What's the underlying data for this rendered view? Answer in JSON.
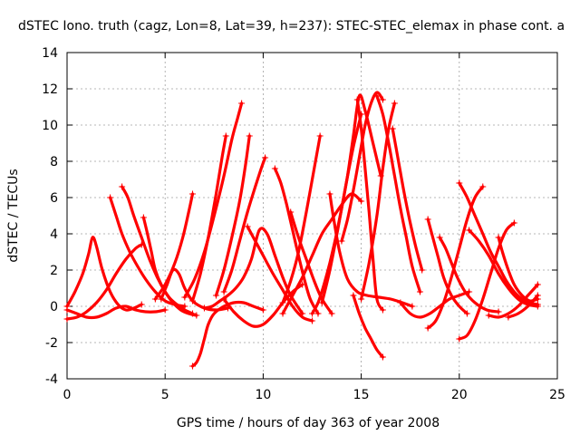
{
  "chart_data": {
    "type": "scatter",
    "title": "dSTEC Iono. truth (cagz, Lon=8, Lat=39, h=237): STEC-STEC_elemax in phase cont. a",
    "xlabel": "GPS time / hours of day 363 of year 2008",
    "ylabel": "dSTEC  / TECUs",
    "xlim": [
      0,
      25
    ],
    "ylim": [
      -4,
      14
    ],
    "xticks": [
      0,
      5,
      10,
      15,
      20,
      25
    ],
    "yticks": [
      -4,
      -2,
      0,
      2,
      4,
      6,
      8,
      10,
      12,
      14
    ],
    "grid": true,
    "marker": "plus",
    "color": "#ff0000",
    "series": [
      {
        "x": [
          0.0,
          0.4,
          0.8,
          1.1,
          1.3,
          1.5,
          1.8,
          2.2,
          2.6,
          3.0,
          3.4,
          3.8
        ],
        "y": [
          0.0,
          0.8,
          1.8,
          2.9,
          3.8,
          3.3,
          2.0,
          0.8,
          0.1,
          -0.2,
          -0.1,
          0.1
        ]
      },
      {
        "x": [
          0.0,
          0.5,
          1.0,
          1.5,
          2.0,
          2.5,
          3.0,
          3.5,
          3.8
        ],
        "y": [
          -0.7,
          -0.6,
          -0.3,
          0.2,
          0.9,
          1.8,
          2.6,
          3.2,
          3.4
        ]
      },
      {
        "x": [
          0.0,
          0.5,
          1.0,
          1.5,
          2.0,
          2.5,
          3.0,
          3.5,
          4.0,
          4.5,
          5.0
        ],
        "y": [
          -0.2,
          -0.4,
          -0.6,
          -0.6,
          -0.4,
          -0.1,
          0.0,
          -0.2,
          -0.3,
          -0.3,
          -0.2
        ]
      },
      {
        "x": [
          2.2,
          2.5,
          2.8,
          3.2,
          3.6,
          4.0,
          4.5,
          5.0,
          5.5,
          6.0
        ],
        "y": [
          6.0,
          5.0,
          4.0,
          3.0,
          2.2,
          1.5,
          0.8,
          0.3,
          0.1,
          0.0
        ]
      },
      {
        "x": [
          2.8,
          3.1,
          3.4,
          3.8,
          4.2,
          4.6,
          5.0,
          5.4,
          5.8,
          6.2,
          6.6
        ],
        "y": [
          6.6,
          6.0,
          5.0,
          3.8,
          2.6,
          1.6,
          0.8,
          0.2,
          -0.2,
          -0.4,
          -0.5
        ]
      },
      {
        "x": [
          3.9,
          4.1,
          4.3,
          4.5,
          4.8,
          5.2,
          5.6,
          6.0,
          6.4
        ],
        "y": [
          4.9,
          4.0,
          3.0,
          2.0,
          1.2,
          0.5,
          0.1,
          -0.2,
          -0.4
        ]
      },
      {
        "x": [
          4.5,
          5.0,
          5.5,
          5.9,
          6.2,
          6.4
        ],
        "y": [
          0.4,
          1.2,
          2.4,
          3.8,
          5.2,
          6.2
        ]
      },
      {
        "x": [
          4.8,
          5.1,
          5.4,
          5.7,
          6.0,
          6.4,
          7.0,
          7.6,
          8.2
        ],
        "y": [
          0.4,
          1.2,
          2.0,
          1.8,
          1.0,
          0.3,
          -0.1,
          -0.2,
          -0.1
        ]
      },
      {
        "x": [
          6.4,
          6.6,
          6.8,
          7.0,
          7.2,
          7.5,
          8.0,
          8.5,
          9.0,
          9.5,
          10.0
        ],
        "y": [
          -3.3,
          -3.1,
          -2.6,
          -1.8,
          -1.0,
          -0.4,
          0.0,
          0.2,
          0.2,
          0.0,
          -0.2
        ]
      },
      {
        "x": [
          6.0,
          6.5,
          7.0,
          7.5,
          8.0,
          8.4,
          8.7,
          8.9
        ],
        "y": [
          0.5,
          1.5,
          3.0,
          5.0,
          7.2,
          9.2,
          10.4,
          11.2
        ]
      },
      {
        "x": [
          6.4,
          6.8,
          7.2,
          7.6,
          7.9,
          8.1
        ],
        "y": [
          0.3,
          1.8,
          3.8,
          6.2,
          8.2,
          9.4
        ]
      },
      {
        "x": [
          7.6,
          8.0,
          8.4,
          8.8,
          9.1,
          9.3
        ],
        "y": [
          0.6,
          2.0,
          3.8,
          5.8,
          7.8,
          9.4
        ]
      },
      {
        "x": [
          8.0,
          8.4,
          8.8,
          9.2,
          9.6,
          9.9,
          10.1
        ],
        "y": [
          0.8,
          2.0,
          3.6,
          5.2,
          6.6,
          7.6,
          8.2
        ]
      },
      {
        "x": [
          7.0,
          7.4,
          7.8,
          8.2,
          8.6,
          9.0,
          9.4,
          9.8,
          10.2,
          10.6,
          11.0,
          11.4,
          12.0
        ],
        "y": [
          -0.1,
          0.0,
          0.3,
          0.6,
          1.0,
          1.6,
          2.6,
          4.2,
          4.0,
          2.8,
          1.6,
          0.6,
          -0.4
        ]
      },
      {
        "x": [
          8.0,
          8.5,
          9.0,
          9.5,
          10.0,
          10.5,
          11.0,
          11.5,
          12.0
        ],
        "y": [
          0.4,
          -0.3,
          -0.8,
          -1.1,
          -1.0,
          -0.5,
          0.2,
          0.8,
          1.2
        ]
      },
      {
        "x": [
          9.2,
          9.6,
          10.0,
          10.5,
          11.0,
          11.5,
          12.0,
          12.5
        ],
        "y": [
          4.4,
          3.6,
          2.8,
          1.8,
          0.9,
          0.0,
          -0.6,
          -0.8
        ]
      },
      {
        "x": [
          10.6,
          10.9,
          11.2,
          11.5,
          11.8,
          12.1,
          12.4,
          12.8
        ],
        "y": [
          7.6,
          6.8,
          5.6,
          4.2,
          2.8,
          1.5,
          0.4,
          -0.4
        ]
      },
      {
        "x": [
          11.0,
          11.4,
          11.8,
          12.2,
          12.6,
          12.9
        ],
        "y": [
          0.2,
          1.4,
          3.0,
          5.2,
          7.6,
          9.4
        ]
      },
      {
        "x": [
          11.0,
          11.5,
          12.0,
          12.5,
          13.0,
          13.5,
          14.0,
          14.5,
          15.0
        ],
        "y": [
          -0.4,
          0.6,
          1.6,
          2.8,
          4.0,
          4.8,
          5.6,
          6.2,
          5.8
        ]
      },
      {
        "x": [
          11.4,
          11.8,
          12.2,
          12.6,
          13.0,
          13.5
        ],
        "y": [
          5.2,
          3.8,
          2.6,
          1.4,
          0.4,
          -0.4
        ]
      },
      {
        "x": [
          12.5,
          12.8,
          13.1,
          13.4,
          13.7,
          14.0,
          14.3,
          14.6,
          14.9,
          15.2,
          15.6,
          16.0
        ],
        "y": [
          -0.4,
          0.2,
          1.2,
          2.4,
          3.8,
          5.4,
          7.2,
          9.4,
          11.6,
          10.8,
          9.0,
          7.2
        ]
      },
      {
        "x": [
          13.4,
          13.6,
          13.9,
          14.3,
          14.8,
          15.3,
          15.9,
          16.5,
          17.1,
          17.6
        ],
        "y": [
          6.2,
          4.8,
          3.0,
          1.5,
          0.8,
          0.6,
          0.5,
          0.4,
          0.2,
          0.0
        ]
      },
      {
        "x": [
          14.0,
          14.3,
          14.6,
          14.9,
          15.2,
          15.5,
          15.8,
          16.1
        ],
        "y": [
          3.6,
          4.8,
          6.4,
          8.2,
          10.0,
          11.2,
          11.8,
          11.4
        ]
      },
      {
        "x": [
          13.0,
          13.4,
          13.8,
          14.2,
          14.6,
          15.0
        ],
        "y": [
          0.2,
          2.0,
          4.2,
          6.6,
          8.8,
          10.6
        ]
      },
      {
        "x": [
          14.8,
          15.0,
          15.2,
          15.4,
          15.6,
          15.8,
          16.1
        ],
        "y": [
          11.4,
          9.8,
          7.6,
          5.2,
          2.6,
          0.4,
          -0.2
        ]
      },
      {
        "x": [
          15.0,
          15.4,
          15.8,
          16.1,
          16.4,
          16.7
        ],
        "y": [
          0.4,
          2.4,
          5.0,
          7.6,
          9.8,
          11.2
        ]
      },
      {
        "x": [
          14.6,
          14.9,
          15.2,
          15.5,
          15.8,
          16.1
        ],
        "y": [
          0.6,
          -0.4,
          -1.2,
          -1.8,
          -2.4,
          -2.8
        ]
      },
      {
        "x": [
          15.8,
          16.1,
          16.4,
          16.7,
          17.0,
          17.3,
          17.6,
          18.0
        ],
        "y": [
          11.6,
          10.6,
          9.0,
          7.2,
          5.4,
          3.8,
          2.2,
          0.8
        ]
      },
      {
        "x": [
          16.6,
          16.9,
          17.2,
          17.5,
          17.8,
          18.1
        ],
        "y": [
          9.8,
          8.0,
          6.2,
          4.6,
          3.2,
          2.0
        ]
      },
      {
        "x": [
          17.0,
          17.5,
          18.0,
          18.5,
          19.0,
          19.5,
          20.0,
          20.5
        ],
        "y": [
          0.2,
          -0.4,
          -0.6,
          -0.4,
          0.0,
          0.4,
          0.6,
          0.8
        ]
      },
      {
        "x": [
          18.4,
          18.6,
          18.9,
          19.2,
          19.6,
          20.0,
          20.4
        ],
        "y": [
          4.8,
          4.0,
          2.8,
          1.6,
          0.6,
          0.0,
          -0.4
        ]
      },
      {
        "x": [
          19.0,
          19.3,
          19.6,
          19.9,
          20.3,
          20.8,
          21.4,
          22.0
        ],
        "y": [
          3.8,
          3.2,
          2.4,
          1.6,
          0.8,
          0.2,
          -0.2,
          -0.3
        ]
      },
      {
        "x": [
          18.4,
          18.8,
          19.2,
          19.6,
          20.0,
          20.4,
          20.8,
          21.2
        ],
        "y": [
          -1.2,
          -0.8,
          0.2,
          1.6,
          3.2,
          4.8,
          6.0,
          6.6
        ]
      },
      {
        "x": [
          20.0,
          20.4,
          20.8,
          21.2,
          21.6,
          22.0,
          22.4,
          22.8
        ],
        "y": [
          -1.8,
          -1.6,
          -0.8,
          0.4,
          1.8,
          3.2,
          4.2,
          4.6
        ]
      },
      {
        "x": [
          20.0,
          20.4,
          20.8,
          21.2,
          21.6,
          22.0,
          22.4,
          22.8,
          23.2,
          23.6,
          24.0
        ],
        "y": [
          6.8,
          6.0,
          5.0,
          4.0,
          3.0,
          2.2,
          1.4,
          0.8,
          0.4,
          0.2,
          0.1
        ]
      },
      {
        "x": [
          20.5,
          21.0,
          21.5,
          22.0,
          22.5,
          23.0,
          23.5,
          24.0
        ],
        "y": [
          4.2,
          3.6,
          2.8,
          1.8,
          1.0,
          0.4,
          0.1,
          0.0
        ]
      },
      {
        "x": [
          22.0,
          22.2,
          22.5,
          22.8,
          23.2,
          23.6,
          24.0
        ],
        "y": [
          3.8,
          3.0,
          2.0,
          1.2,
          0.6,
          0.3,
          0.4
        ]
      },
      {
        "x": [
          21.5,
          22.0,
          22.5,
          23.0,
          23.5,
          24.0
        ],
        "y": [
          -0.5,
          -0.6,
          -0.4,
          0.0,
          0.6,
          1.2
        ]
      },
      {
        "x": [
          22.5,
          23.0,
          23.5,
          24.0
        ],
        "y": [
          -0.6,
          -0.4,
          0.0,
          0.6
        ]
      }
    ]
  }
}
